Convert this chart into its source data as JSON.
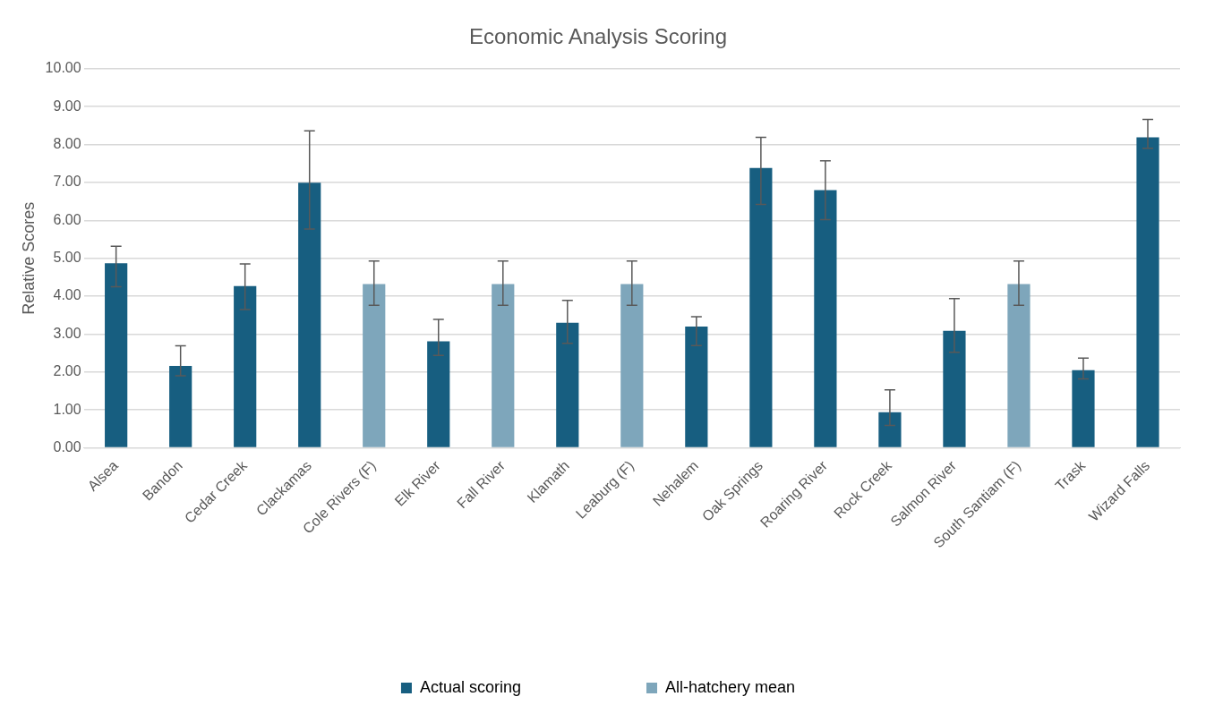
{
  "chart_data": {
    "type": "bar",
    "title": "Economic Analysis Scoring",
    "ylabel": "Relative Scores",
    "categories": [
      "Alsea",
      "Bandon",
      "Cedar Creek",
      "Clackamas",
      "Cole Rivers (F)",
      "Elk River",
      "Fall River",
      "Klamath",
      "Leaburg (F)",
      "Nehalem",
      "Oak Springs",
      "Roaring River",
      "Rock Creek",
      "Salmon River",
      "South Santiam (F)",
      "Trask",
      "Wizard Falls"
    ],
    "series": [
      {
        "name": "Actual scoring",
        "color": "#175e80",
        "values": [
          4.87,
          2.16,
          4.27,
          6.99,
          null,
          2.81,
          null,
          3.3,
          null,
          3.2,
          7.38,
          6.8,
          0.94,
          3.09,
          null,
          2.05,
          8.19
        ],
        "errors": [
          [
            4.25,
            5.32
          ],
          [
            1.9,
            2.69
          ],
          [
            3.65,
            4.85
          ],
          [
            5.77,
            8.36
          ],
          null,
          [
            2.44,
            3.39
          ],
          null,
          [
            2.76,
            3.89
          ],
          null,
          [
            2.7,
            3.46
          ],
          [
            6.42,
            8.19
          ],
          [
            6.02,
            7.57
          ],
          [
            0.59,
            1.53
          ],
          [
            2.52,
            3.94
          ],
          null,
          [
            1.82,
            2.37
          ],
          [
            7.9,
            8.66
          ]
        ]
      },
      {
        "name": "All-hatchery mean",
        "color": "#7ea6bb",
        "values": [
          null,
          null,
          null,
          null,
          4.32,
          null,
          4.32,
          null,
          4.32,
          null,
          null,
          null,
          null,
          null,
          4.32,
          null,
          null
        ],
        "errors": [
          null,
          null,
          null,
          null,
          [
            3.76,
            4.93
          ],
          null,
          [
            3.76,
            4.93
          ],
          null,
          [
            3.76,
            4.93
          ],
          null,
          null,
          null,
          null,
          null,
          [
            3.76,
            4.93
          ],
          null,
          null
        ]
      }
    ],
    "ylim": [
      0,
      10
    ],
    "yticks": [
      {
        "value": 0,
        "label": "0.00"
      },
      {
        "value": 1,
        "label": "1.00"
      },
      {
        "value": 2,
        "label": "2.00"
      },
      {
        "value": 3,
        "label": "3.00"
      },
      {
        "value": 4,
        "label": "4.00"
      },
      {
        "value": 5,
        "label": "5.00"
      },
      {
        "value": 6,
        "label": "6.00"
      },
      {
        "value": 7,
        "label": "7.00"
      },
      {
        "value": 8,
        "label": "8.00"
      },
      {
        "value": 9,
        "label": "9.00"
      },
      {
        "value": 10,
        "label": "10.00"
      }
    ],
    "grid": "y",
    "legend": "bottom"
  }
}
